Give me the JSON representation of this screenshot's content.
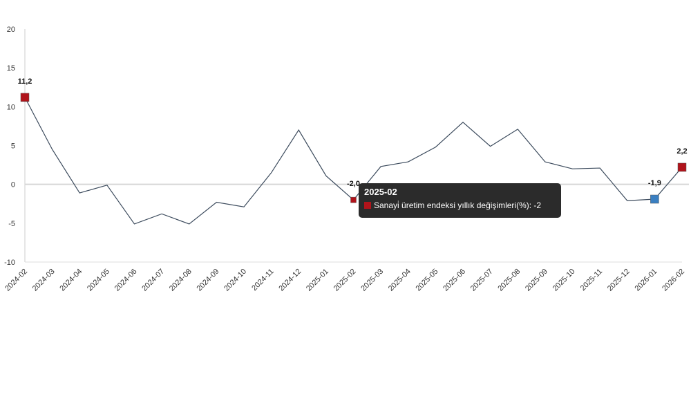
{
  "chart_data": {
    "type": "line",
    "title": "",
    "xlabel": "",
    "ylabel": "",
    "ylim": [
      -10,
      20
    ],
    "yticks": [
      20,
      15,
      10,
      5,
      0,
      -5,
      -10
    ],
    "grid": false,
    "categories": [
      "2024-02",
      "2024-03",
      "2024-04",
      "2024-05",
      "2024-06",
      "2024-07",
      "2024-08",
      "2024-09",
      "2024-10",
      "2024-11",
      "2024-12",
      "2025-01",
      "2025-02",
      "2025-03",
      "2025-04",
      "2025-05",
      "2025-06",
      "2025-07",
      "2025-08",
      "2025-09",
      "2025-10",
      "2025-11",
      "2025-12",
      "2026-01",
      "2026-02"
    ],
    "series": [
      {
        "name": "Sanayi üretim endeksi yıllık değişimleri(%)",
        "values": [
          11.2,
          4.5,
          -1.1,
          -0.1,
          -5.1,
          -3.8,
          -5.1,
          -2.3,
          -2.9,
          1.5,
          7.0,
          1.1,
          -2.0,
          2.3,
          2.9,
          4.8,
          8.0,
          4.9,
          7.1,
          2.9,
          2.0,
          2.1,
          -2.1,
          -1.9,
          2.2
        ]
      }
    ],
    "data_labels": [
      {
        "index": 0,
        "text": "11,2",
        "marker_color": "#b0141b"
      },
      {
        "index": 12,
        "text": "-2,0",
        "marker_color": "#b0141b"
      },
      {
        "index": 23,
        "text": "-1,9",
        "marker_color": "#3a7fc1"
      },
      {
        "index": 24,
        "text": "2,2",
        "marker_color": "#b0141b"
      }
    ],
    "line_color": "#3b4a5c",
    "tooltip": {
      "title": "2025-02",
      "text": "Sanayi̇ üretim endeksi yıllık değişimleri(%): -2",
      "swatch_color": "#b0141b"
    }
  }
}
